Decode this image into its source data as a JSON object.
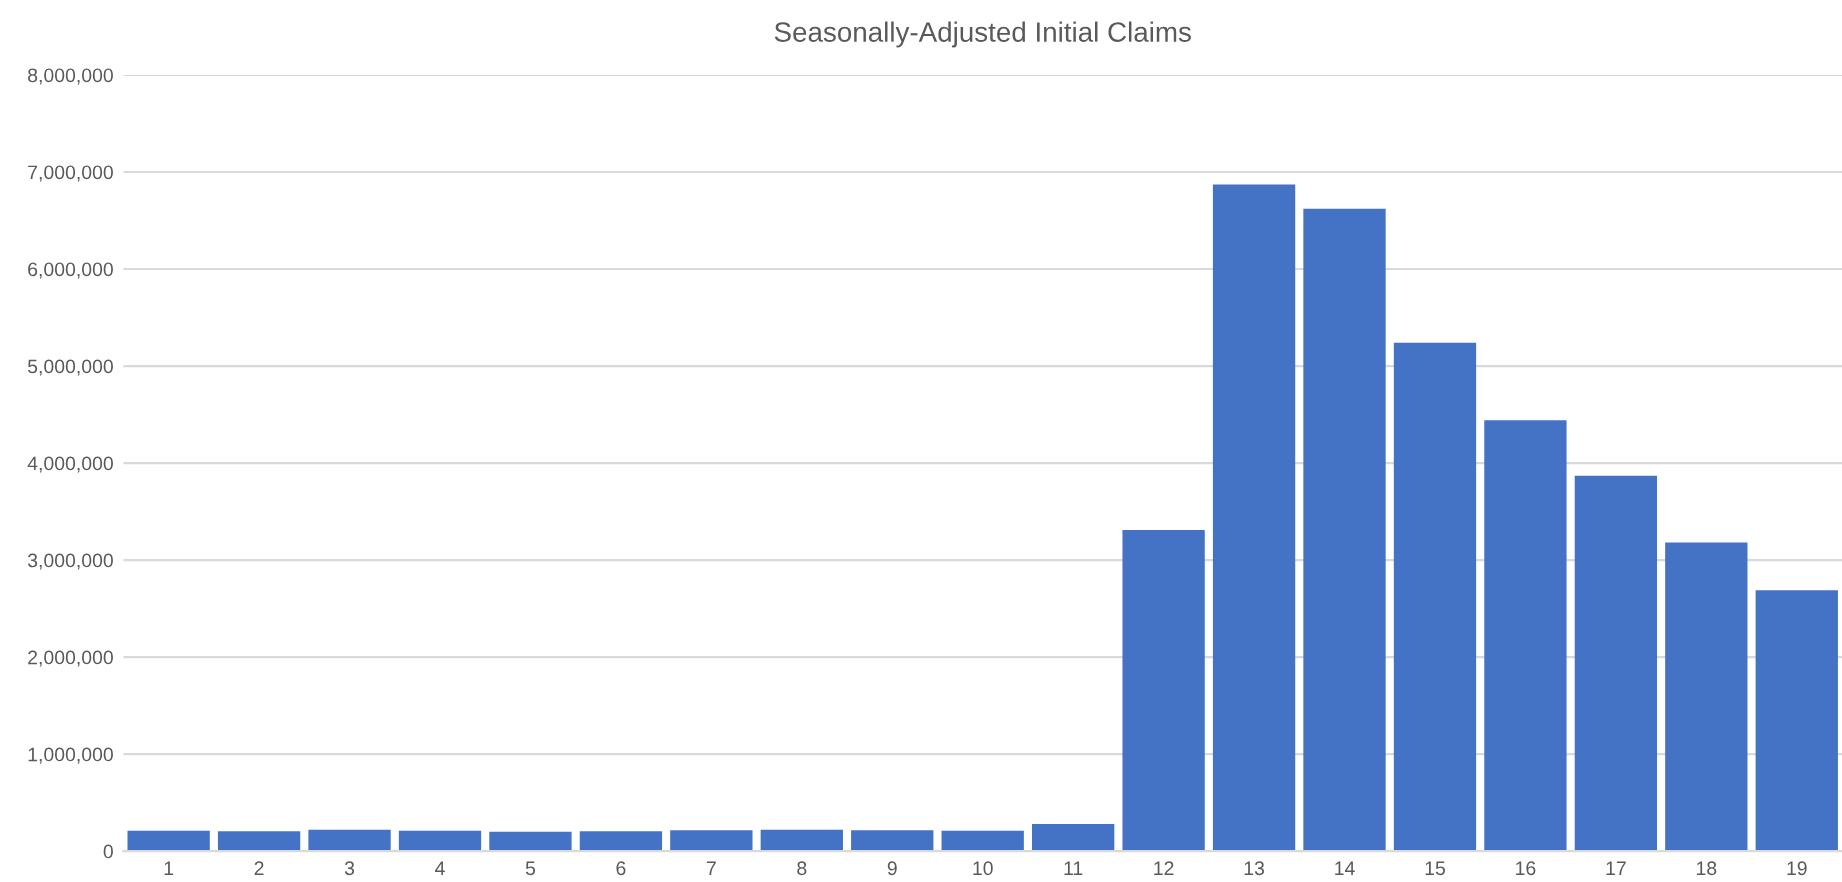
{
  "chart_data": {
    "type": "bar",
    "title": "Seasonally-Adjusted Initial Claims",
    "categories": [
      "1",
      "2",
      "3",
      "4",
      "5",
      "6",
      "7",
      "8",
      "9",
      "10",
      "11",
      "12",
      "13",
      "14",
      "15",
      "16",
      "17",
      "18",
      "19"
    ],
    "values": [
      210000,
      205000,
      220000,
      210000,
      200000,
      205000,
      215000,
      220000,
      215000,
      210000,
      280000,
      3310000,
      6870000,
      6620000,
      5240000,
      4440000,
      3870000,
      3180000,
      2690000
    ],
    "color": "#4472c4",
    "ylim": [
      0,
      8000000
    ],
    "yticks": [
      {
        "value": 0,
        "label": "0"
      },
      {
        "value": 1000000,
        "label": "1,000,000"
      },
      {
        "value": 2000000,
        "label": "2,000,000"
      },
      {
        "value": 3000000,
        "label": "3,000,000"
      },
      {
        "value": 4000000,
        "label": "4,000,000"
      },
      {
        "value": 5000000,
        "label": "5,000,000"
      },
      {
        "value": 6000000,
        "label": "6,000,000"
      },
      {
        "value": 7000000,
        "label": "7,000,000"
      },
      {
        "value": 8000000,
        "label": "8,000,000"
      }
    ],
    "grid": "y"
  }
}
